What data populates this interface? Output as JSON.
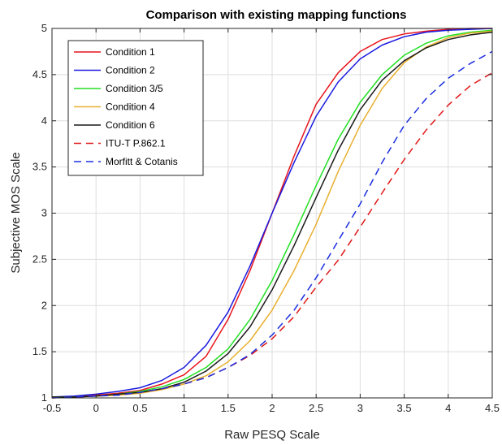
{
  "chart_data": {
    "type": "line",
    "title": "Comparison with existing mapping functions",
    "xlabel": "Raw PESQ Scale",
    "ylabel": "Subjective MOS Scale",
    "xlim": [
      -0.5,
      4.5
    ],
    "ylim": [
      1,
      5
    ],
    "xticks": [
      -0.5,
      0,
      0.5,
      1,
      1.5,
      2,
      2.5,
      3,
      3.5,
      4,
      4.5
    ],
    "xtick_labels": [
      "-0.5",
      "0",
      "0.5",
      "1",
      "1.5",
      "2",
      "2.5",
      "3",
      "3.5",
      "4",
      "4.5"
    ],
    "yticks": [
      1,
      1.5,
      2,
      2.5,
      3,
      3.5,
      4,
      4.5,
      5
    ],
    "ytick_labels": [
      "1",
      "1.5",
      "2",
      "2.5",
      "3",
      "3.5",
      "4",
      "4.5",
      "5"
    ],
    "grid": true,
    "legend_position": "top-left",
    "x": [
      -0.5,
      -0.25,
      0,
      0.25,
      0.5,
      0.75,
      1,
      1.25,
      1.5,
      1.75,
      2,
      2.25,
      2.5,
      2.75,
      3,
      3.25,
      3.5,
      3.75,
      4,
      4.25,
      4.5
    ],
    "series": [
      {
        "name": "Condition 1",
        "color": "#e8141c",
        "dash": "solid",
        "values": [
          1.01,
          1.01,
          1.03,
          1.05,
          1.08,
          1.15,
          1.25,
          1.45,
          1.85,
          2.38,
          3.0,
          3.62,
          4.18,
          4.52,
          4.75,
          4.88,
          4.94,
          4.97,
          4.99,
          5.0,
          5.0
        ]
      },
      {
        "name": "Condition 2",
        "color": "#1a1ae0",
        "dash": "solid",
        "values": [
          1.01,
          1.02,
          1.04,
          1.07,
          1.11,
          1.19,
          1.33,
          1.57,
          1.93,
          2.43,
          3.0,
          3.55,
          4.05,
          4.42,
          4.67,
          4.82,
          4.91,
          4.96,
          4.98,
          4.99,
          5.0
        ]
      },
      {
        "name": "Condition 3/5",
        "color": "#22e022",
        "dash": "solid",
        "values": [
          1.01,
          1.01,
          1.02,
          1.04,
          1.07,
          1.12,
          1.2,
          1.33,
          1.53,
          1.85,
          2.27,
          2.77,
          3.3,
          3.8,
          4.2,
          4.5,
          4.71,
          4.84,
          4.92,
          4.96,
          4.98
        ]
      },
      {
        "name": "Condition 4",
        "color": "#e8b030",
        "dash": "solid",
        "values": [
          1.0,
          1.01,
          1.02,
          1.03,
          1.05,
          1.09,
          1.15,
          1.24,
          1.39,
          1.62,
          1.95,
          2.38,
          2.88,
          3.45,
          3.95,
          4.35,
          4.63,
          4.8,
          4.9,
          4.95,
          4.97
        ]
      },
      {
        "name": "Condition 6",
        "color": "#1a1a1a",
        "dash": "solid",
        "values": [
          1.01,
          1.01,
          1.02,
          1.04,
          1.06,
          1.1,
          1.17,
          1.29,
          1.48,
          1.77,
          2.17,
          2.65,
          3.17,
          3.68,
          4.12,
          4.44,
          4.65,
          4.79,
          4.88,
          4.93,
          4.96
        ]
      },
      {
        "name": "ITU-T P.862.1",
        "color": "#e01818",
        "dash": "dashed",
        "values": [
          1.0,
          1.01,
          1.02,
          1.03,
          1.06,
          1.1,
          1.15,
          1.22,
          1.33,
          1.46,
          1.64,
          1.88,
          2.2,
          2.49,
          2.85,
          3.22,
          3.58,
          3.9,
          4.17,
          4.38,
          4.52
        ]
      },
      {
        "name": "Morfitt & Cotanis",
        "color": "#1a2ee0",
        "dash": "dashed",
        "values": [
          1.0,
          1.01,
          1.02,
          1.03,
          1.06,
          1.1,
          1.15,
          1.22,
          1.33,
          1.47,
          1.68,
          1.95,
          2.3,
          2.7,
          3.1,
          3.55,
          3.95,
          4.24,
          4.46,
          4.62,
          4.75
        ]
      }
    ]
  }
}
